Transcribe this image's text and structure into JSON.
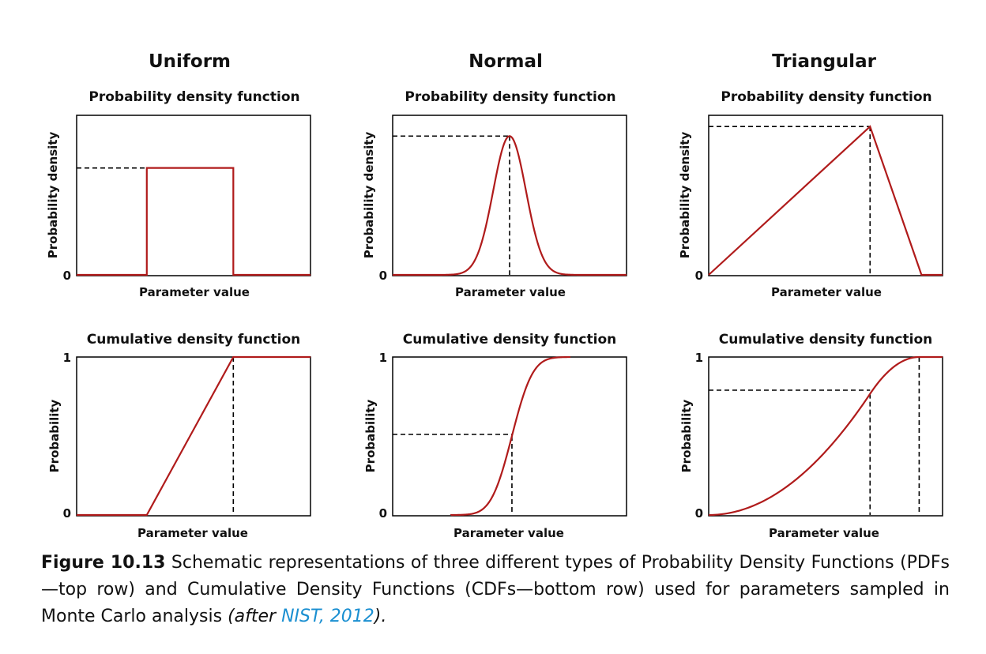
{
  "columns": [
    {
      "title": "Uniform",
      "pdf": {
        "title": "Probability density function",
        "ylabel": "Probability density",
        "xlabel": "Parameter value",
        "ytick_low": "0"
      },
      "cdf": {
        "title": "Cumulative density function",
        "ylabel": "Probability",
        "xlabel": "Parameter value",
        "ytick_low": "0",
        "ytick_high": "1"
      }
    },
    {
      "title": "Normal",
      "pdf": {
        "title": "Probability density function",
        "ylabel": "Probability density",
        "xlabel": "Parameter value",
        "ytick_low": "0"
      },
      "cdf": {
        "title": "Cumulative density function",
        "ylabel": "Probability",
        "xlabel": "Parameter value",
        "ytick_low": "0",
        "ytick_high": "1"
      }
    },
    {
      "title": "Triangular",
      "pdf": {
        "title": "Probability density function",
        "ylabel": "Probability density",
        "xlabel": "Parameter value",
        "ytick_low": "0"
      },
      "cdf": {
        "title": "Cumulative density function",
        "ylabel": "Probability",
        "xlabel": "Parameter value",
        "ytick_low": "0",
        "ytick_high": "1"
      }
    }
  ],
  "caption": {
    "label": "Figure 10.13",
    "text": " Schematic representations of three different types of Probability Density Functions (PDFs—top row) and Cumulative Density Functions (CDFs—bottom row) used for parameters sampled in Monte Carlo analysis ",
    "cite_prefix": "(after ",
    "cite_link": "NIST, 2012",
    "cite_suffix": ").",
    "link_color": "#1a8fd1"
  },
  "chart_data": [
    {
      "type": "line",
      "distribution": "uniform",
      "function": "pdf",
      "x": [
        0,
        0.3,
        0.3,
        0.67,
        0.67,
        1
      ],
      "y": [
        0,
        0,
        0.67,
        0.67,
        0,
        0
      ],
      "ylim": [
        0,
        1
      ],
      "reference_lines": [
        {
          "kind": "horizontal",
          "y": 0.67
        }
      ],
      "line_color": "#b01b1b"
    },
    {
      "type": "line",
      "distribution": "normal",
      "function": "pdf",
      "mean": 0.5,
      "sd": 0.07,
      "x_range": [
        0.21,
        0.79
      ],
      "peak_y": 0.87,
      "ylim": [
        0,
        1
      ],
      "reference_lines": [
        {
          "kind": "horizontal",
          "y": 0.87
        },
        {
          "kind": "vertical",
          "x": 0.5
        }
      ],
      "line_color": "#b01b1b"
    },
    {
      "type": "line",
      "distribution": "triangular",
      "function": "pdf",
      "x": [
        0,
        0.69,
        0.91,
        1
      ],
      "y": [
        0,
        0.93,
        0,
        0
      ],
      "ylim": [
        0,
        1
      ],
      "reference_lines": [
        {
          "kind": "horizontal",
          "y": 0.93
        },
        {
          "kind": "vertical",
          "x": 0.69
        }
      ],
      "line_color": "#b01b1b"
    },
    {
      "type": "line",
      "distribution": "uniform",
      "function": "cdf",
      "x": [
        0,
        0.3,
        0.67,
        1
      ],
      "y": [
        0,
        0,
        1,
        1
      ],
      "ylim": [
        0,
        1
      ],
      "reference_lines": [
        {
          "kind": "vertical",
          "x": 0.67
        }
      ],
      "line_color": "#b01b1b"
    },
    {
      "type": "line",
      "distribution": "normal",
      "function": "cdf",
      "mean": 0.51,
      "sd": 0.07,
      "x_range": [
        0.25,
        0.76
      ],
      "ylim": [
        0,
        1
      ],
      "reference_lines": [
        {
          "kind": "horizontal",
          "y": 0.51
        },
        {
          "kind": "vertical",
          "x": 0.51
        }
      ],
      "line_color": "#b01b1b"
    },
    {
      "type": "line",
      "distribution": "triangular",
      "function": "cdf",
      "x": [
        0,
        0.69,
        0.9
      ],
      "y": [
        0.0,
        0.79,
        1.0
      ],
      "ylim": [
        0,
        1
      ],
      "reference_lines": [
        {
          "kind": "horizontal",
          "y": 0.79
        },
        {
          "kind": "vertical",
          "x": 0.69
        },
        {
          "kind": "vertical",
          "x": 0.9
        }
      ],
      "line_color": "#b01b1b"
    }
  ]
}
